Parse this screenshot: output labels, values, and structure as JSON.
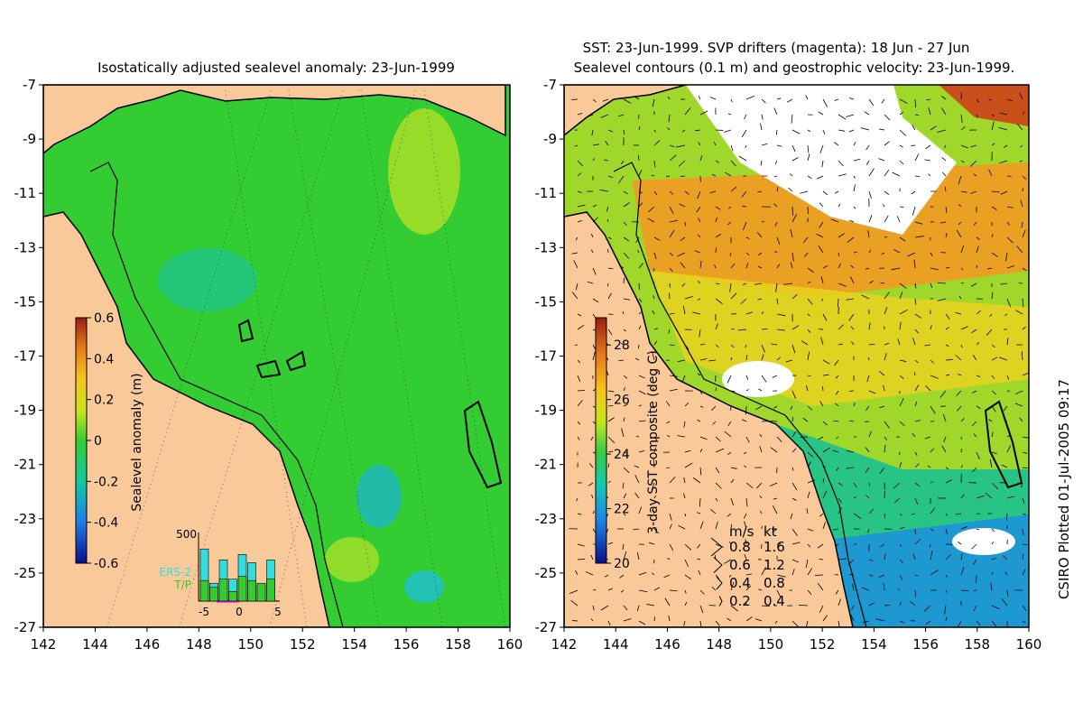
{
  "credit": "CSIRO Plotted 01-Jul-2005 09:17",
  "colors": {
    "land": "#f9c99a",
    "axis": "#000000",
    "magenta": "#ff00ff",
    "ers2": "#33dddd",
    "tp": "#33cc33"
  },
  "chart_data": [
    {
      "type": "heatmap",
      "title": "Isostatically adjusted sealevel anomaly: 23-Jun-1999",
      "xlim": [
        142,
        160
      ],
      "ylim": [
        -27,
        -7
      ],
      "xticks": [
        "142",
        "144",
        "146",
        "148",
        "150",
        "152",
        "154",
        "156",
        "158",
        "160"
      ],
      "yticks": [
        "-7",
        "-9",
        "-11",
        "-13",
        "-15",
        "-17",
        "-19",
        "-21",
        "-23",
        "-25",
        "-27"
      ],
      "colorbar": {
        "label": "Sealevel anomaly (m)",
        "range": [
          -0.6,
          0.6
        ],
        "ticks": [
          "0.6",
          "0.4",
          "0.2",
          "0",
          "-0.2",
          "-0.4",
          "-0.6"
        ]
      },
      "inset": {
        "ymax_label": "500",
        "xticks": [
          "-5",
          "0",
          "5"
        ],
        "legend": [
          "ERS-2",
          "T/P"
        ],
        "ers2": [
          380,
          130,
          300,
          160,
          340,
          280,
          120,
          300
        ],
        "tp": [
          150,
          100,
          160,
          70,
          180,
          150,
          130,
          160
        ]
      }
    },
    {
      "type": "heatmap",
      "title": "SST: 23-Jun-1999. SVP drifters (magenta): 18 Jun - 27 Jun",
      "subtitle": "Sealevel contours (0.1 m) and geostrophic velocity: 23-Jun-1999.",
      "xlim": [
        142,
        160
      ],
      "ylim": [
        -27,
        -7
      ],
      "xticks": [
        "142",
        "144",
        "146",
        "148",
        "150",
        "152",
        "154",
        "156",
        "158",
        "160"
      ],
      "yticks": [
        "-7",
        "-9",
        "-11",
        "-13",
        "-15",
        "-17",
        "-19",
        "-21",
        "-23",
        "-25",
        "-27"
      ],
      "colorbar": {
        "label": "3-day SST composite (deg C)",
        "range": [
          20,
          29
        ],
        "ticks": [
          "28",
          "26",
          "24",
          "22",
          "20"
        ]
      },
      "velocity_legend": {
        "header_ms": "m/s",
        "header_kt": "kt",
        "rows": [
          {
            "ms": "0.8",
            "kt": "1.6"
          },
          {
            "ms": "0.6",
            "kt": "1.2"
          },
          {
            "ms": "0.4",
            "kt": "0.8"
          },
          {
            "ms": "0.2",
            "kt": "0.4"
          }
        ]
      }
    }
  ]
}
